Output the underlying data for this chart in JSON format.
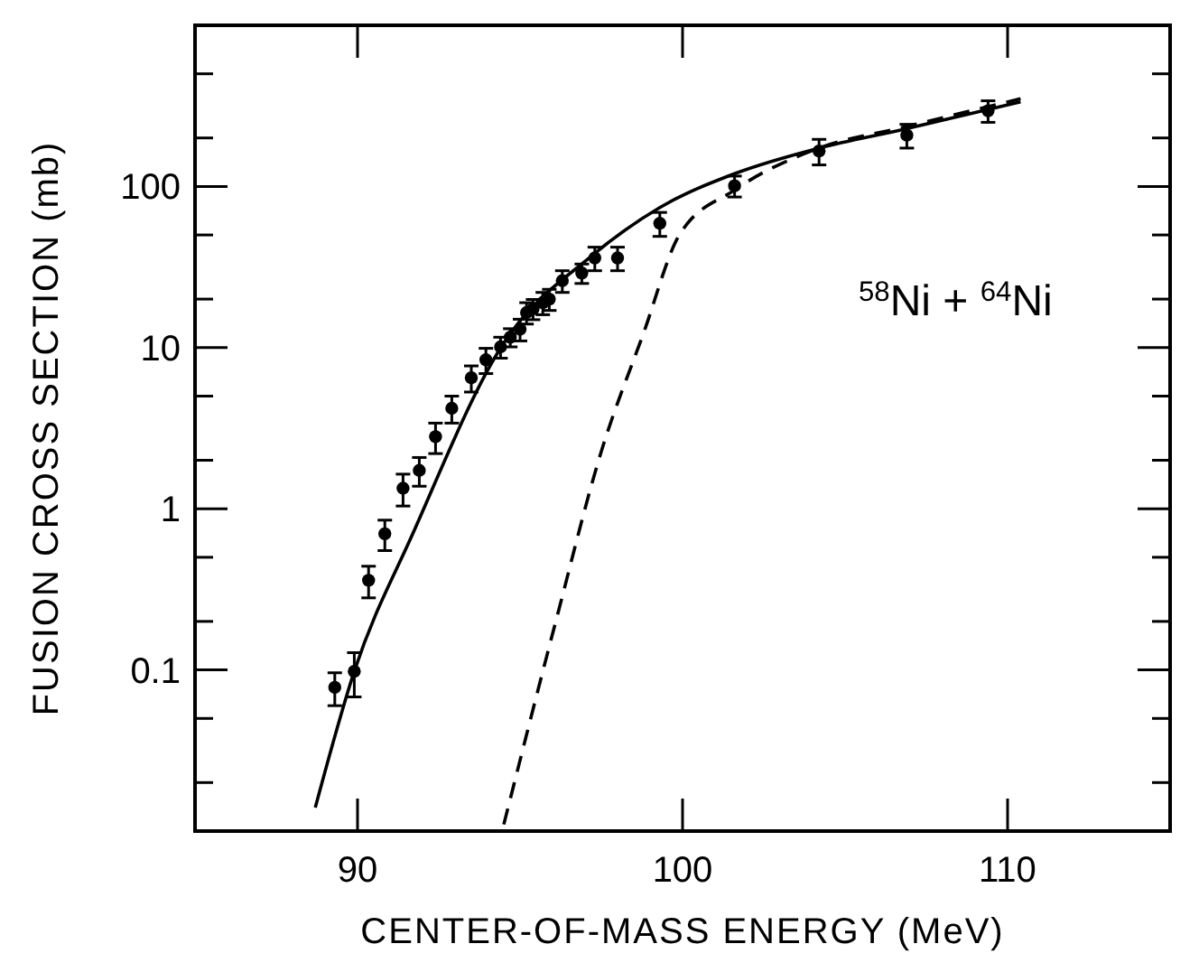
{
  "chart_data": {
    "type": "scatter",
    "xlabel": "CENTER-OF-MASS ENERGY (MeV)",
    "ylabel": "FUSION CROSS SECTION (mb)",
    "annotations": [
      "$^{58}$Ni + $^{64}$Ni"
    ],
    "log": "y",
    "xlim": [
      85,
      115
    ],
    "xticks": [
      90,
      100,
      110
    ],
    "ylim": [
      0.01,
      1000
    ],
    "yticks": [
      {
        "value": 0.02,
        "label": null
      },
      {
        "value": 0.05,
        "label": null
      },
      0.1,
      {
        "value": 0.2,
        "label": null
      },
      {
        "value": 0.5,
        "label": null
      },
      1,
      {
        "value": 2,
        "label": null
      },
      {
        "value": 5,
        "label": null
      },
      10,
      {
        "value": 20,
        "label": null
      },
      {
        "value": 50,
        "label": null
      },
      100,
      {
        "value": 200,
        "label": null
      },
      {
        "value": 500,
        "label": null
      }
    ],
    "grid": false,
    "series": [
      {
        "color": "#000000",
        "marker": "circle",
        "x": [
          89.3,
          89.9,
          90.34,
          90.84,
          91.4,
          91.9,
          92.4,
          92.9,
          93.5,
          93.95,
          94.4,
          94.7,
          95.0,
          95.2,
          95.4,
          95.7,
          95.9,
          96.3,
          96.9,
          97.3,
          98.0,
          99.3,
          101.6,
          104.2,
          106.9,
          109.4
        ],
        "values": [
          0.078,
          0.098,
          0.36,
          0.7,
          1.34,
          1.73,
          2.8,
          4.2,
          6.5,
          8.4,
          10.1,
          11.6,
          13,
          16.5,
          17.4,
          19,
          20,
          26,
          29,
          36,
          36,
          59,
          101,
          166,
          208,
          295
        ],
        "errors": [
          0.018,
          0.03,
          0.08,
          0.15,
          0.3,
          0.35,
          0.6,
          0.8,
          1.2,
          1.5,
          1.5,
          1.5,
          2,
          2.5,
          2.5,
          3,
          3,
          4,
          4,
          6,
          6,
          10,
          15,
          30,
          35,
          45
        ]
      },
      {
        "type": "line",
        "color": "#000000",
        "line_style": "solid",
        "marker": "none",
        "x": [
          88.7,
          89.9,
          91.7,
          94.45,
          97.2,
          99.3,
          101.6,
          104.2,
          106.8,
          110.4
        ],
        "values": [
          0.014,
          0.098,
          0.7,
          10.3,
          37,
          74,
          120,
          173,
          226,
          335
        ]
      },
      {
        "type": "line",
        "color": "#000000",
        "line_style": "dashed",
        "marker": "none",
        "x": [
          94.5,
          96.1,
          97.5,
          98.8,
          99.9,
          101.6,
          104.2,
          106.8,
          110.4
        ],
        "values": [
          0.011,
          0.2,
          2.27,
          12.3,
          50,
          95,
          173,
          233,
          350
        ]
      }
    ]
  }
}
